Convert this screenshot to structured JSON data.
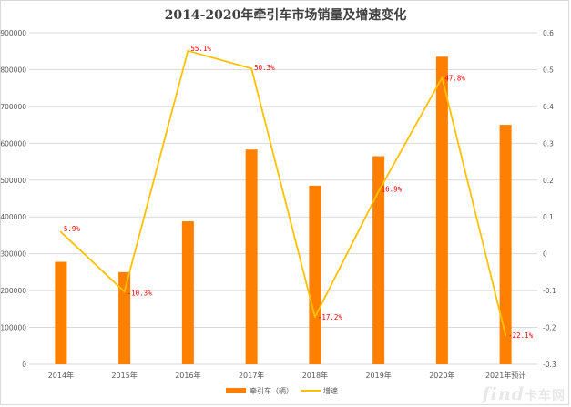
{
  "chart_data": {
    "type": "bar",
    "title": "2014-2020年牵引车市场销量及增速变化",
    "categories": [
      "2014年",
      "2015年",
      "2016年",
      "2017年",
      "2018年",
      "2019年",
      "2020年",
      "2021年预计"
    ],
    "series": [
      {
        "name": "牵引车（辆）",
        "type": "bar",
        "axis": "left",
        "values": [
          278000,
          250000,
          388000,
          583000,
          485000,
          565000,
          835000,
          650000
        ],
        "color": "#ff7f00"
      },
      {
        "name": "增速",
        "type": "line",
        "axis": "right",
        "values": [
          0.059,
          -0.103,
          0.551,
          0.503,
          -0.172,
          0.169,
          0.478,
          -0.221
        ],
        "labels": [
          "5.9%",
          "-10.3%",
          "55.1%",
          "50.3%",
          "-17.2%",
          "16.9%",
          "47.8%",
          "-22.1%"
        ],
        "color": "#ffc000"
      }
    ],
    "y_left": {
      "min": 0,
      "max": 900000,
      "ticks": [
        "0",
        "100000",
        "200000",
        "300000",
        "400000",
        "500000",
        "600000",
        "700000",
        "800000",
        "900000"
      ]
    },
    "y_right": {
      "min": -0.3,
      "max": 0.6,
      "ticks": [
        "-0.3",
        "-0.2",
        "-0.1",
        "0",
        "0.1",
        "0.2",
        "0.3",
        "0.4",
        "0.5",
        "0.6"
      ]
    },
    "grid": true,
    "legend": "bottom",
    "data_label_color": "#ff0000"
  },
  "watermark": {
    "latin": "find",
    "cn": "卡车网"
  }
}
